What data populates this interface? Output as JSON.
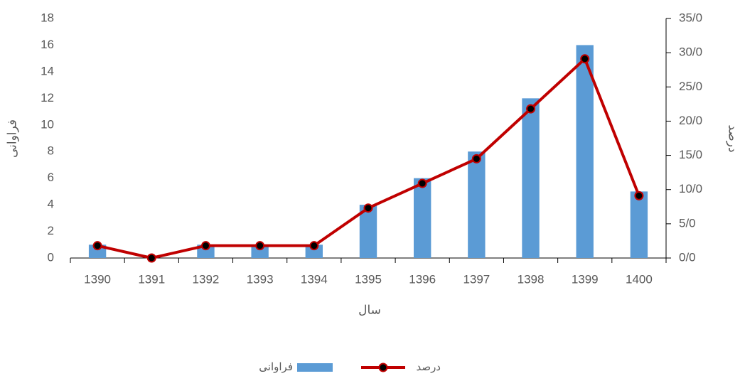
{
  "chart_data": {
    "type": "bar_line",
    "categories": [
      "1390",
      "1391",
      "1392",
      "1393",
      "1394",
      "1395",
      "1396",
      "1397",
      "1398",
      "1399",
      "1400"
    ],
    "series": [
      {
        "name": "فراوانی",
        "type": "bar",
        "color": "#5b9bd5",
        "values": [
          1,
          0,
          1,
          1,
          1,
          4,
          6,
          8,
          12,
          16,
          5
        ]
      },
      {
        "name": "درصد",
        "type": "line",
        "axis": "y2",
        "color": "#c00000",
        "values": [
          1.8,
          0,
          1.8,
          1.8,
          1.8,
          7.3,
          10.9,
          14.5,
          21.8,
          29.1,
          9.1
        ]
      }
    ],
    "xlabel": "سال",
    "ylabel": "فراوانی",
    "y2label": "درصد",
    "ylim": [
      0,
      18
    ],
    "yticks": [
      0,
      2,
      4,
      6,
      8,
      10,
      12,
      14,
      16,
      18
    ],
    "y2lim": [
      0,
      35
    ],
    "y2ticks": [
      {
        "value": 0,
        "label": "0/0"
      },
      {
        "value": 5,
        "label": "5/0"
      },
      {
        "value": 10,
        "label": "10/0"
      },
      {
        "value": 15,
        "label": "15/0"
      },
      {
        "value": 20,
        "label": "20/0"
      },
      {
        "value": 25,
        "label": "25/0"
      },
      {
        "value": 30,
        "label": "30/0"
      },
      {
        "value": 35,
        "label": "35/0"
      }
    ],
    "legend": "bottom"
  }
}
